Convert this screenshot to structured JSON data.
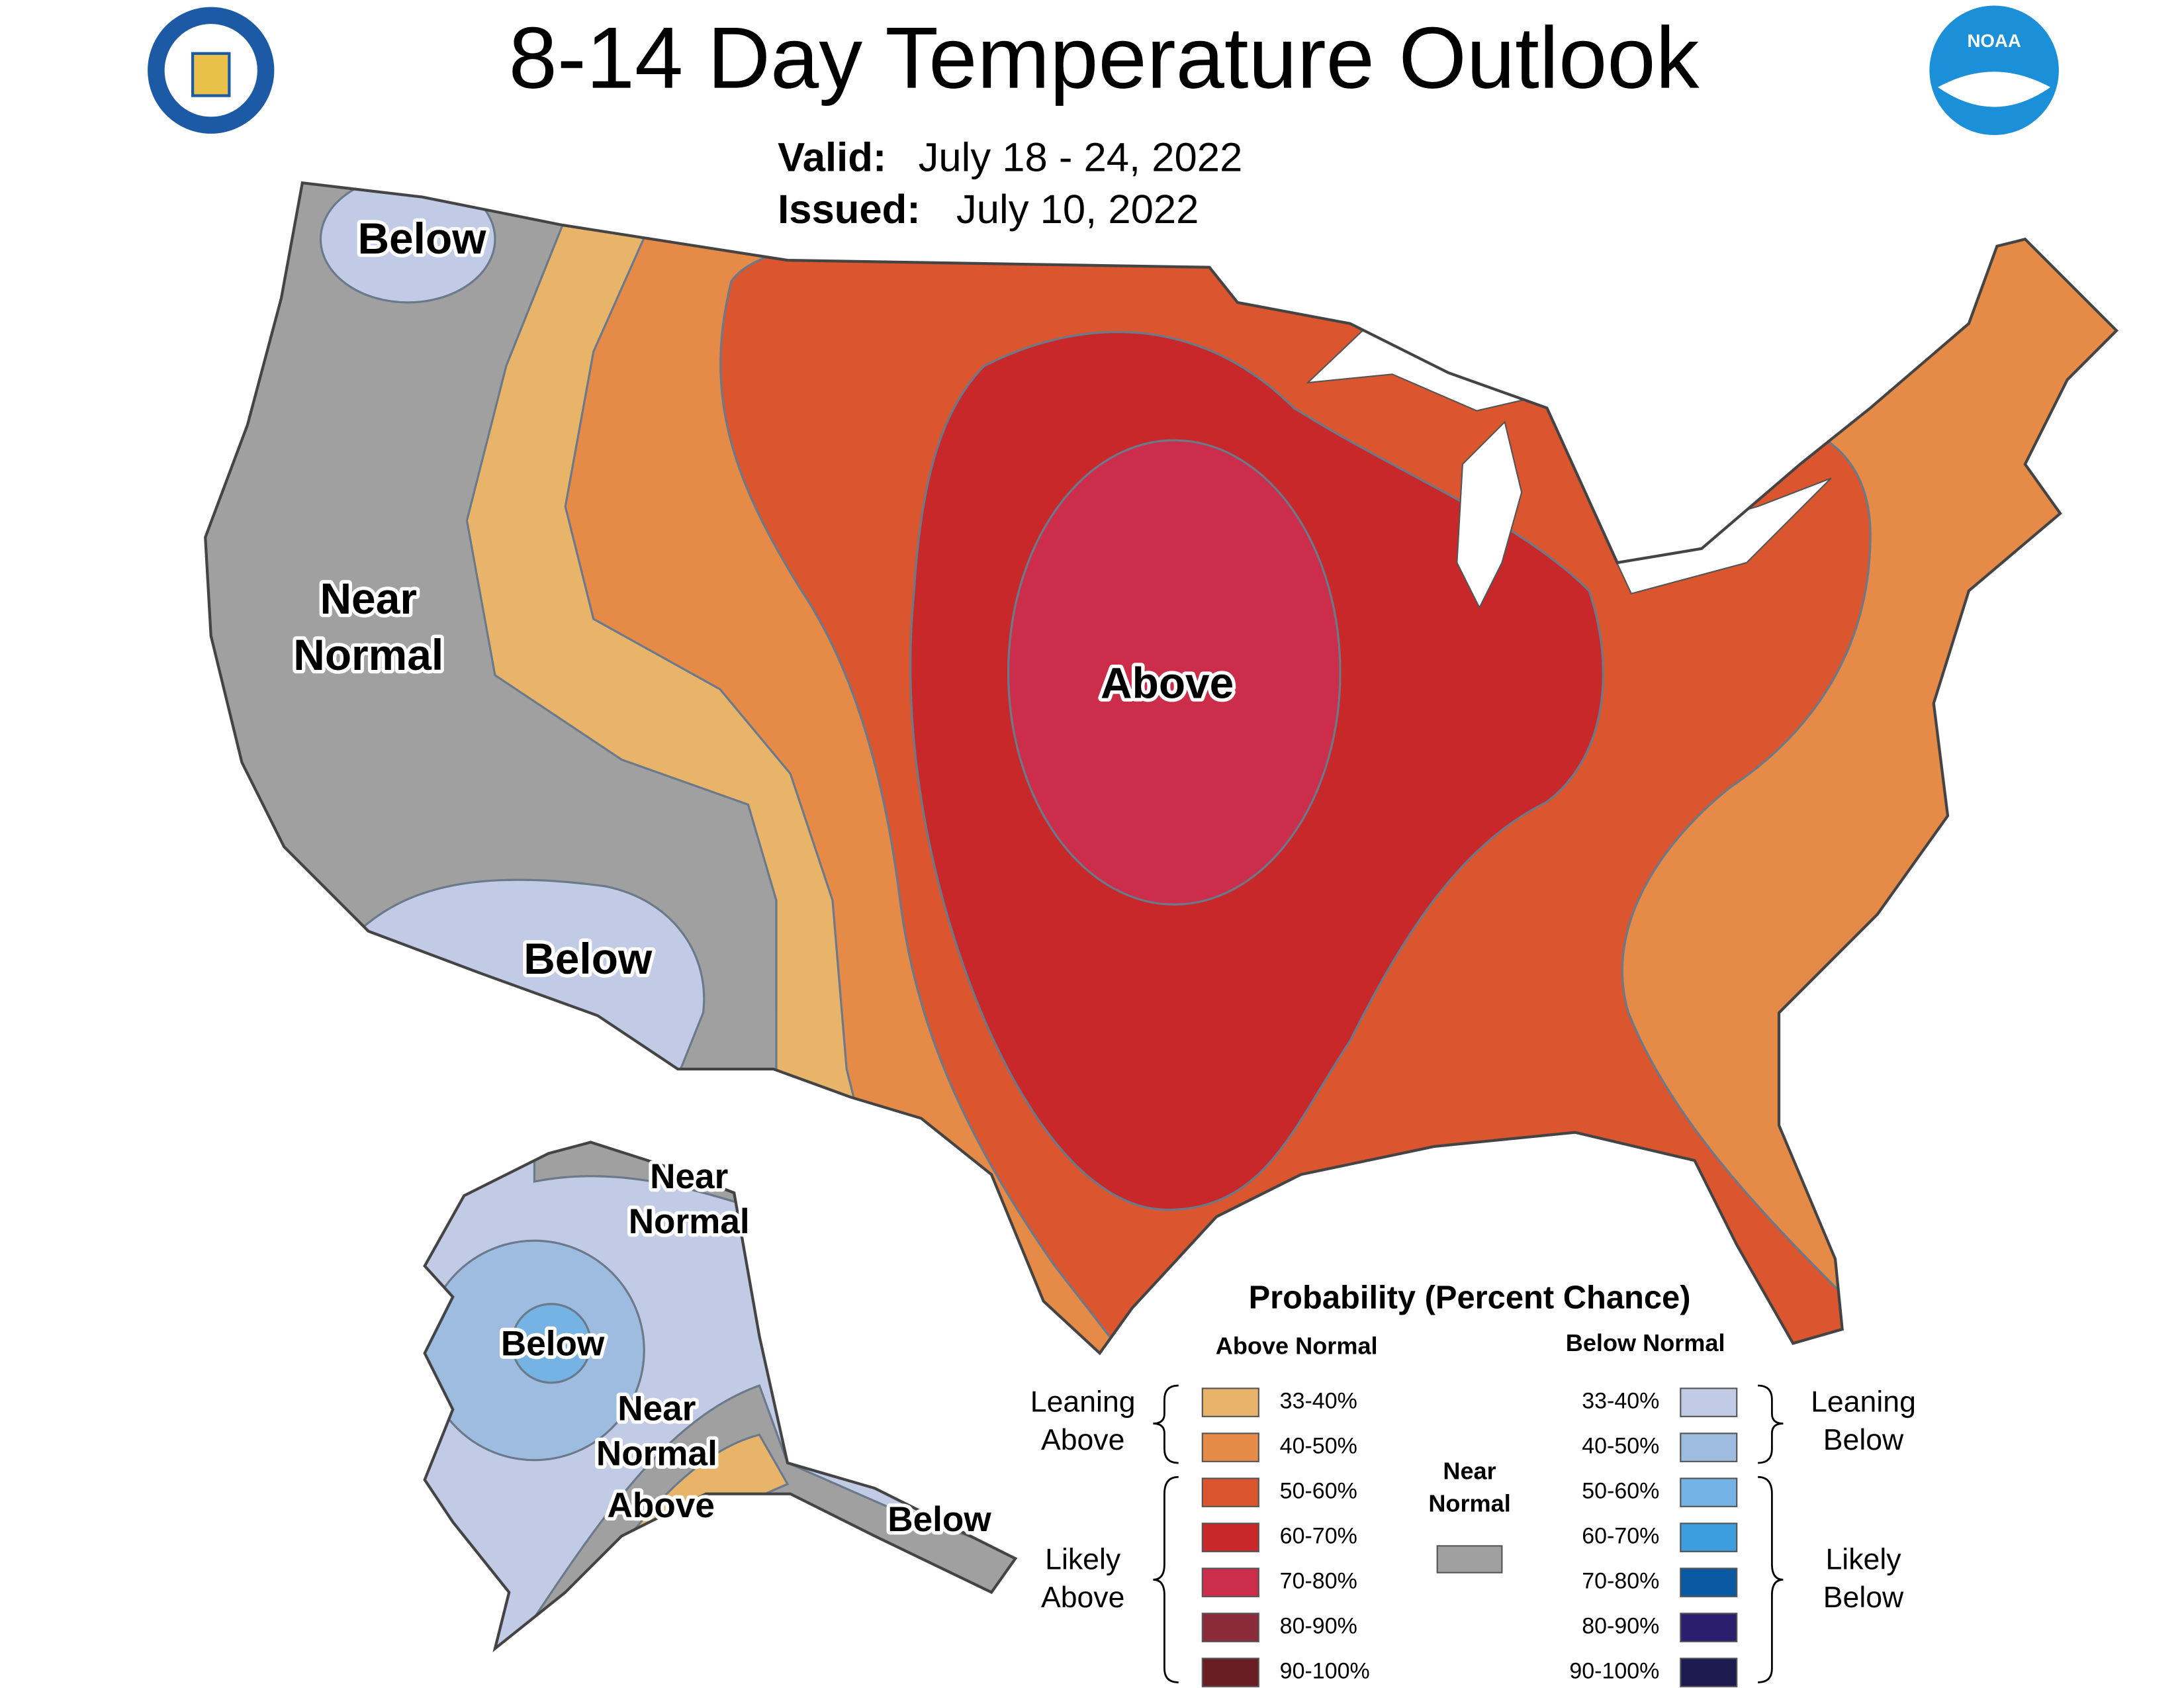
{
  "header": {
    "title": "8-14 Day Temperature Outlook",
    "valid_label": "Valid:",
    "valid_date": "July 18 - 24, 2022",
    "issued_label": "Issued:",
    "issued_date": "July 10, 2022",
    "logo_text": "NOAA"
  },
  "map_labels": [
    {
      "lines": [
        "Below"
      ]
    },
    {
      "lines": [
        "Near",
        "Normal"
      ]
    },
    {
      "lines": [
        "Below"
      ]
    },
    {
      "lines": [
        "Above"
      ]
    },
    {
      "lines": [
        "Near",
        "Normal"
      ]
    },
    {
      "lines": [
        "Below"
      ]
    },
    {
      "lines": [
        "Near",
        "Normal"
      ]
    },
    {
      "lines": [
        "Above"
      ]
    },
    {
      "lines": [
        "Below"
      ]
    }
  ],
  "legend": {
    "title": "Probability (Percent Chance)",
    "above_header": "Above Normal",
    "below_header": "Below Normal",
    "near_normal": {
      "lines": [
        "Near",
        "Normal"
      ],
      "color": "#a0a0a0"
    },
    "groups": {
      "leaning_above": [
        "Leaning",
        "Above"
      ],
      "likely_above": [
        "Likely",
        "Above"
      ],
      "leaning_below": [
        "Leaning",
        "Below"
      ],
      "likely_below": [
        "Likely",
        "Below"
      ]
    },
    "above": [
      {
        "range": "33-40%",
        "color": "#e8b46a"
      },
      {
        "range": "40-50%",
        "color": "#e68a47"
      },
      {
        "range": "50-60%",
        "color": "#db552e"
      },
      {
        "range": "60-70%",
        "color": "#c8282a"
      },
      {
        "range": "70-80%",
        "color": "#cb2d4a"
      },
      {
        "range": "80-90%",
        "color": "#8b2b3a"
      },
      {
        "range": "90-100%",
        "color": "#6b1d24"
      }
    ],
    "below": [
      {
        "range": "33-40%",
        "color": "#c1cbe6"
      },
      {
        "range": "40-50%",
        "color": "#9dbce0"
      },
      {
        "range": "50-60%",
        "color": "#74b3e3"
      },
      {
        "range": "60-70%",
        "color": "#3e9ddc"
      },
      {
        "range": "70-80%",
        "color": "#0a5aa2"
      },
      {
        "range": "80-90%",
        "color": "#2b1e6e"
      },
      {
        "range": "90-100%",
        "color": "#1d1a50"
      }
    ]
  }
}
